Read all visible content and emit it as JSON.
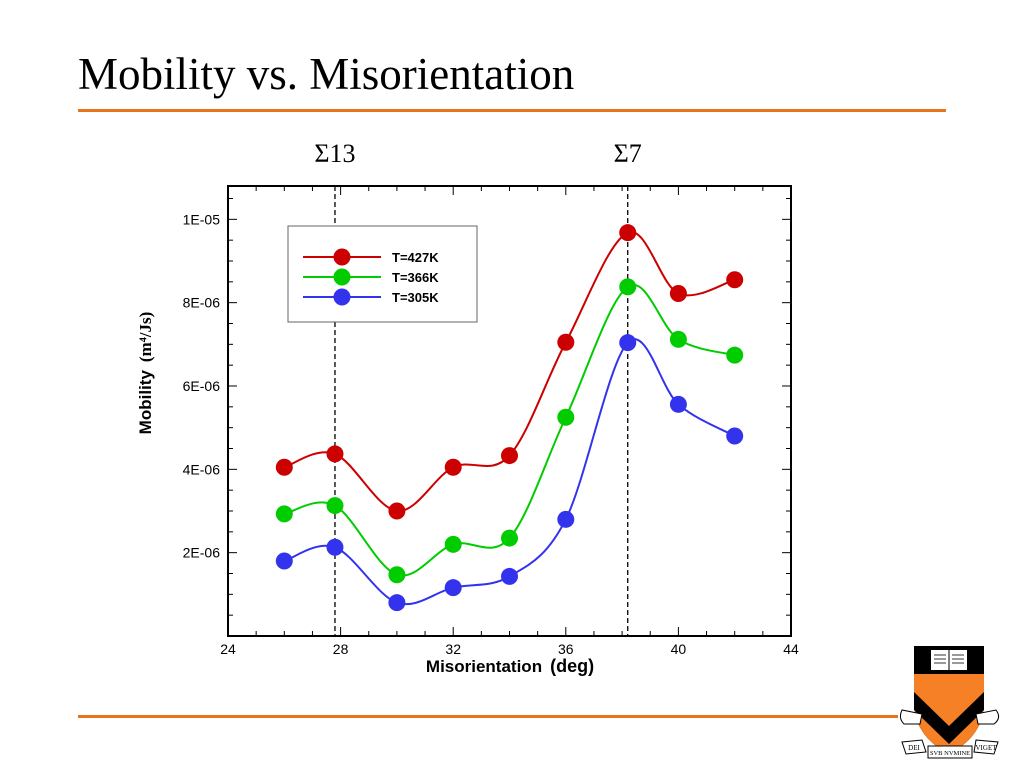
{
  "slide": {
    "title": "Mobility vs. Misorientation"
  },
  "colors": {
    "accent": "#e8751a",
    "red": "#cc0000",
    "green": "#00cc00",
    "blue": "#3333ee"
  },
  "logo": {
    "icon": "princeton-shield-icon",
    "motto_left": "DEI",
    "motto_center": "SVB NVMINE",
    "motto_right": "VIGET"
  },
  "chart_data": {
    "type": "line",
    "xlabel": "Misorientation",
    "xlabel_unit": "(deg)",
    "ylabel": "Mobility",
    "ylabel_unit": "(m⁴/Js)",
    "xlim": [
      24,
      44
    ],
    "ylim": [
      0,
      1.08e-05
    ],
    "xticks": [
      24,
      28,
      32,
      36,
      40,
      44
    ],
    "yticks": [
      2e-06,
      4e-06,
      6e-06,
      8e-06,
      1e-05
    ],
    "ytick_labels": [
      "2E-06",
      "4E-06",
      "6E-06",
      "8E-06",
      "1E-05"
    ],
    "grid": false,
    "legend_position": "top-left",
    "annotations": [
      {
        "label": "Σ13",
        "x": 27.8
      },
      {
        "label": "Σ7",
        "x": 38.2
      }
    ],
    "series": [
      {
        "name": "T=427K",
        "color": "#cc0000",
        "points": [
          [
            26,
            4.05e-06
          ],
          [
            27.8,
            4.37e-06
          ],
          [
            30,
            3e-06
          ],
          [
            32,
            4.05e-06
          ],
          [
            34,
            4.33e-06
          ],
          [
            36,
            7.05e-06
          ],
          [
            38.2,
            9.68e-06
          ],
          [
            40,
            8.22e-06
          ],
          [
            42,
            8.55e-06
          ]
        ]
      },
      {
        "name": "T=366K",
        "color": "#00cc00",
        "points": [
          [
            26,
            2.93e-06
          ],
          [
            27.8,
            3.13e-06
          ],
          [
            30,
            1.47e-06
          ],
          [
            32,
            2.2e-06
          ],
          [
            34,
            2.35e-06
          ],
          [
            36,
            5.25e-06
          ],
          [
            38.2,
            8.38e-06
          ],
          [
            40,
            7.12e-06
          ],
          [
            42,
            6.74e-06
          ]
        ]
      },
      {
        "name": "T=305K",
        "color": "#3333ee",
        "points": [
          [
            26,
            1.8e-06
          ],
          [
            27.8,
            2.13e-06
          ],
          [
            30,
            8e-07
          ],
          [
            32,
            1.16e-06
          ],
          [
            34,
            1.43e-06
          ],
          [
            36,
            2.8e-06
          ],
          [
            38.2,
            7.04e-06
          ],
          [
            40,
            5.56e-06
          ],
          [
            42,
            4.8e-06
          ]
        ]
      }
    ]
  }
}
